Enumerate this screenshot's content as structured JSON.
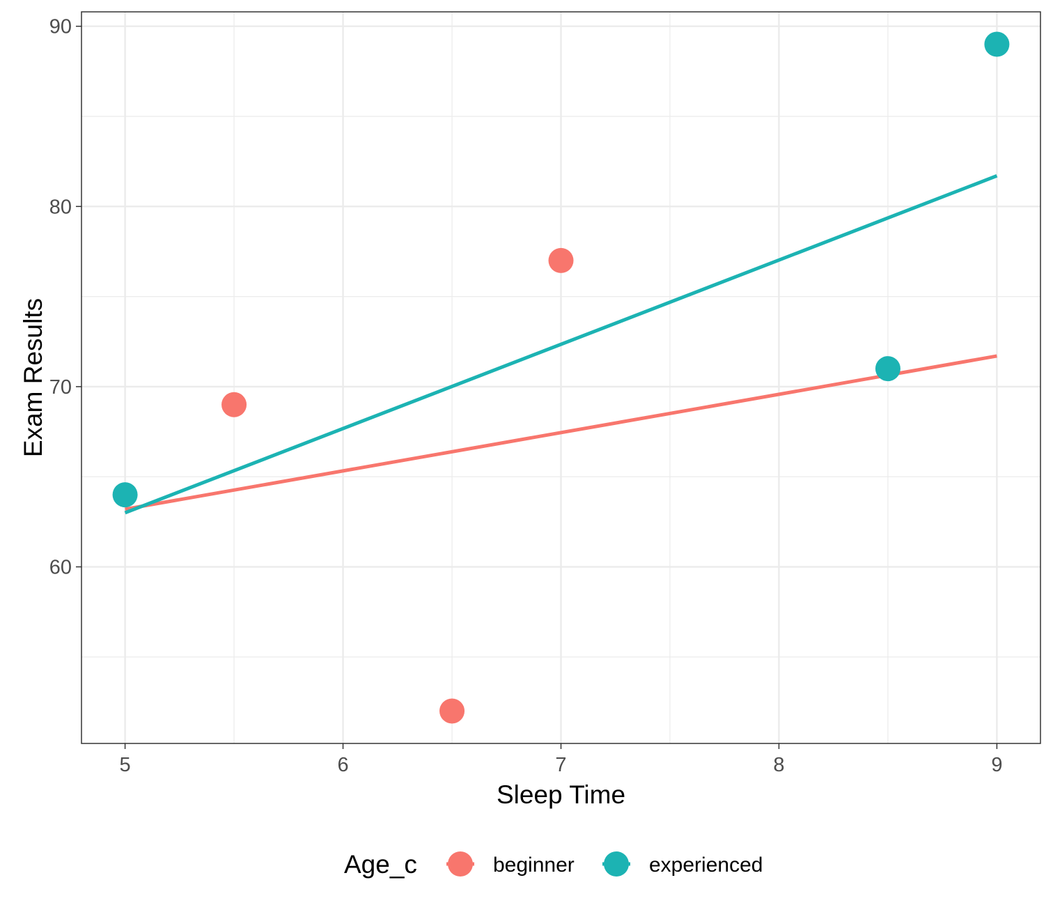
{
  "chart_data": {
    "type": "scatter",
    "title": "",
    "xlabel": "Sleep Time",
    "ylabel": "Exam Results",
    "xlim": [
      4.8,
      9.2
    ],
    "ylim": [
      50.2,
      90.8
    ],
    "x_ticks": [
      5,
      6,
      7,
      8,
      9
    ],
    "y_ticks": [
      60,
      70,
      80,
      90
    ],
    "x_tick_labels": [
      "5",
      "6",
      "7",
      "8",
      "9"
    ],
    "y_tick_labels": [
      "60",
      "70",
      "80",
      "90"
    ],
    "grid": true,
    "legend": {
      "title": "Age_c",
      "position": "bottom"
    },
    "series": [
      {
        "name": "beginner",
        "color": "#F8766D",
        "points": [
          {
            "x": 5.5,
            "y": 69
          },
          {
            "x": 6.5,
            "y": 52
          },
          {
            "x": 7,
            "y": 77
          }
        ],
        "fit_line": {
          "x": [
            5,
            9
          ],
          "y": [
            63.2,
            71.7
          ]
        }
      },
      {
        "name": "experienced",
        "color": "#1CB3B3",
        "points": [
          {
            "x": 5,
            "y": 64
          },
          {
            "x": 8.5,
            "y": 71
          },
          {
            "x": 9,
            "y": 89
          }
        ],
        "fit_line": {
          "x": [
            5,
            9
          ],
          "y": [
            63.0,
            81.7
          ]
        }
      }
    ]
  }
}
